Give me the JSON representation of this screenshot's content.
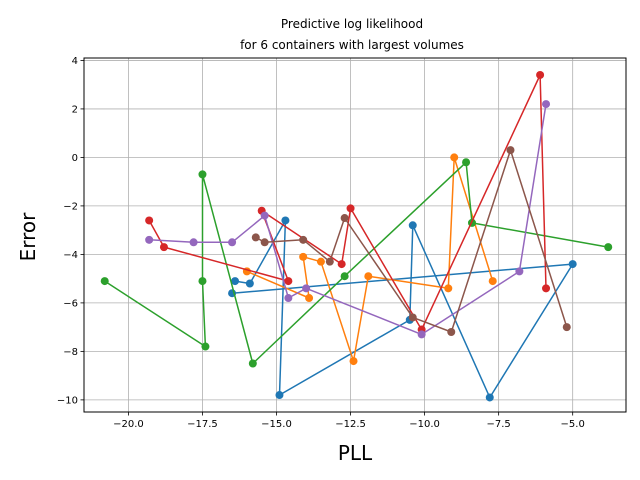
{
  "chart_data": {
    "type": "line",
    "title": [
      "Predictive log likelihood",
      "for 6 containers with largest volumes"
    ],
    "xlabel": "PLL",
    "ylabel": "Error",
    "xlim": [
      -21.5,
      -3.2
    ],
    "ylim": [
      -10.5,
      4.1
    ],
    "xticks": [
      -20.0,
      -17.5,
      -15.0,
      -12.5,
      -10.0,
      -7.5,
      -5.0
    ],
    "xtick_labels": [
      "−20.0",
      "−17.5",
      "−15.0",
      "−12.5",
      "−10.0",
      "−7.5",
      "−5.0"
    ],
    "yticks": [
      -10,
      -8,
      -6,
      -4,
      -2,
      0,
      2,
      4
    ],
    "ytick_labels": [
      "−10",
      "−8",
      "−6",
      "−4",
      "−2",
      "0",
      "2",
      "4"
    ],
    "grid": true,
    "series": [
      {
        "color": "#1f77b4",
        "x": [
          -16.4,
          -15.9,
          -14.7,
          -14.9,
          -10.5,
          -10.4,
          -7.8,
          -5.0,
          -16.5
        ],
        "y": [
          -5.1,
          -5.2,
          -2.6,
          -9.8,
          -6.7,
          -2.8,
          -9.9,
          -4.4,
          -5.6
        ]
      },
      {
        "color": "#ff7f0e",
        "x": [
          -16.0,
          -13.9,
          -14.1,
          -13.5,
          -12.4,
          -11.9,
          -9.2,
          -9.0,
          -7.7
        ],
        "y": [
          -4.7,
          -5.8,
          -4.1,
          -4.3,
          -8.4,
          -4.9,
          -5.4,
          0.0,
          -5.1
        ]
      },
      {
        "color": "#2ca02c",
        "x": [
          -20.8,
          -17.4,
          -17.5,
          -17.5,
          -15.8,
          -12.7,
          -8.6,
          -8.4,
          -3.8
        ],
        "y": [
          -5.1,
          -7.8,
          -5.1,
          -0.7,
          -8.5,
          -4.9,
          -0.2,
          -2.7,
          -3.7
        ]
      },
      {
        "color": "#d62728",
        "x": [
          -19.3,
          -18.8,
          -14.6,
          -15.5,
          -12.8,
          -12.5,
          -10.1,
          -6.1,
          -5.9
        ],
        "y": [
          -2.6,
          -3.7,
          -5.1,
          -2.2,
          -4.4,
          -2.1,
          -7.1,
          3.4,
          -5.4
        ]
      },
      {
        "color": "#9467bd",
        "x": [
          -19.3,
          -17.8,
          -16.5,
          -15.4,
          -14.6,
          -14.0,
          -10.1,
          -6.8,
          -5.9
        ],
        "y": [
          -3.4,
          -3.5,
          -3.5,
          -2.4,
          -5.8,
          -5.4,
          -7.3,
          -4.7,
          2.2
        ]
      },
      {
        "color": "#8c564b",
        "x": [
          -15.7,
          -15.4,
          -14.1,
          -13.2,
          -12.7,
          -10.4,
          -9.1,
          -7.1,
          -5.2
        ],
        "y": [
          -3.3,
          -3.5,
          -3.4,
          -4.3,
          -2.5,
          -6.6,
          -7.2,
          0.3,
          -7.0
        ]
      }
    ]
  }
}
